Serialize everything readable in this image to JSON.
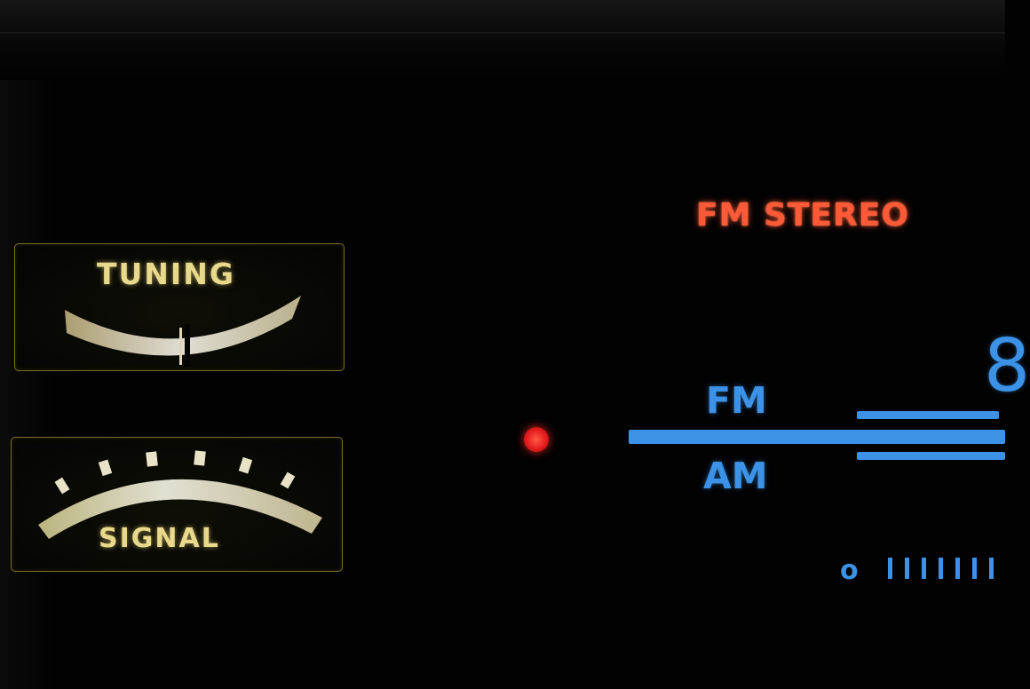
{
  "tuning_meter": {
    "label": "TUNING"
  },
  "signal_meter": {
    "label": "SIGNAL"
  },
  "stereo_indicator": {
    "label": "FM STEREO"
  },
  "band": {
    "fm_label": "FM",
    "am_label": "AM"
  },
  "frequency_partial_digit": "8",
  "scale_start_mark": "o",
  "colors": {
    "amber": "#e9d98c",
    "stereo_red": "#ff5a38",
    "display_blue": "#3b92e6",
    "background": "#020203"
  }
}
